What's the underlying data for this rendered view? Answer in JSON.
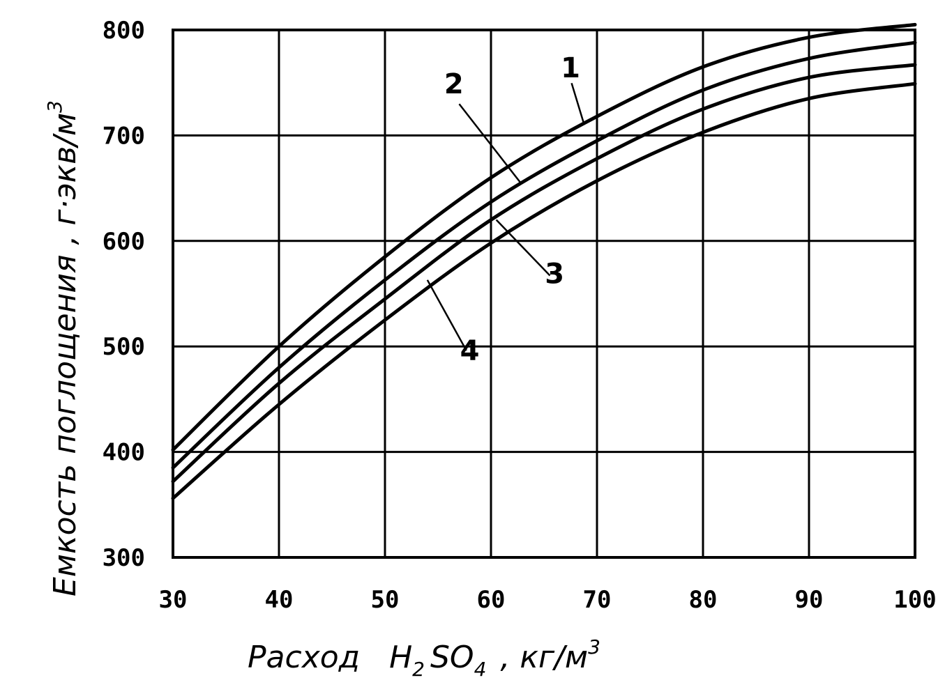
{
  "chart_data": {
    "type": "line",
    "title": "",
    "xlabel": {
      "main": "Расход",
      "formula_h": "H",
      "formula_h_sub": "2",
      "formula_so": "SO",
      "formula_so_sub": "4",
      "unit": ", кг/м",
      "unit_sup": "3"
    },
    "ylabel": {
      "text": "Емкость поглощения , г·экв/м",
      "sup": "3"
    },
    "xlim": [
      30,
      100
    ],
    "ylim": [
      300,
      800
    ],
    "x_ticks": [
      "30",
      "40",
      "50",
      "60",
      "70",
      "80",
      "90",
      "100"
    ],
    "y_ticks": [
      "300",
      "400",
      "500",
      "600",
      "700",
      "800"
    ],
    "grid": true,
    "x": [
      30,
      40,
      50,
      60,
      70,
      80,
      90,
      100
    ],
    "series": [
      {
        "name": "1",
        "values": [
          402,
          500,
          585,
          660,
          718,
          765,
          793,
          805
        ]
      },
      {
        "name": "2",
        "values": [
          385,
          480,
          563,
          637,
          695,
          743,
          773,
          788
        ]
      },
      {
        "name": "3",
        "values": [
          372,
          465,
          545,
          620,
          678,
          725,
          755,
          767
        ]
      },
      {
        "name": "4",
        "values": [
          356,
          445,
          525,
          598,
          657,
          703,
          735,
          749
        ]
      }
    ],
    "curve_labels": [
      {
        "text": "1",
        "x": 67.5,
        "y": 755,
        "line_to": [
          68.8,
          710
        ]
      },
      {
        "text": "2",
        "x": 56.5,
        "y": 740,
        "line_to": [
          62.8,
          655
        ]
      },
      {
        "text": "3",
        "x": 66.0,
        "y": 560,
        "line_to": [
          60.5,
          620
        ]
      },
      {
        "text": "4",
        "x": 58.0,
        "y": 487,
        "line_to": [
          54.0,
          563
        ]
      }
    ]
  }
}
